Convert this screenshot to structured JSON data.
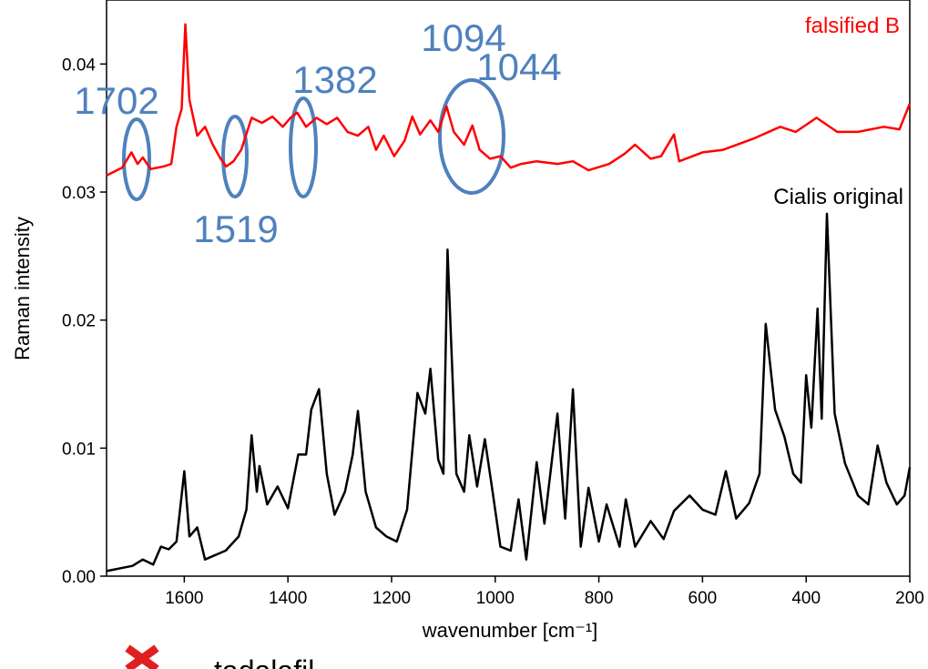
{
  "chart_data": {
    "type": "line",
    "xlabel": "wavenumber [cm⁻¹]",
    "ylabel": "Raman intensity",
    "xlim": [
      1750,
      200
    ],
    "ylim": [
      0,
      0.045
    ],
    "xticks": [
      1600,
      1400,
      1200,
      1000,
      800,
      600,
      400,
      200
    ],
    "yticks": [
      {
        "value": 0,
        "label": "0.00"
      },
      0.01,
      0.02,
      0.03,
      0.04
    ],
    "series": [
      {
        "name": "falsified B",
        "color": "#ff0000",
        "x": [
          1750,
          1720,
          1702,
          1690,
          1680,
          1665,
          1640,
          1625,
          1615,
          1605,
          1598,
          1590,
          1575,
          1560,
          1545,
          1530,
          1519,
          1505,
          1490,
          1470,
          1450,
          1430,
          1410,
          1395,
          1382,
          1365,
          1345,
          1325,
          1305,
          1285,
          1265,
          1245,
          1230,
          1215,
          1195,
          1175,
          1160,
          1145,
          1125,
          1110,
          1094,
          1080,
          1060,
          1044,
          1030,
          1010,
          990,
          970,
          950,
          920,
          880,
          850,
          820,
          780,
          750,
          730,
          700,
          680,
          655,
          645,
          600,
          560,
          500,
          450,
          420,
          380,
          340,
          300,
          250,
          220,
          200
        ],
        "values": [
          0.0313,
          0.0319,
          0.0331,
          0.0322,
          0.0327,
          0.0318,
          0.032,
          0.0322,
          0.0351,
          0.0365,
          0.0431,
          0.0372,
          0.0344,
          0.0351,
          0.0337,
          0.0326,
          0.032,
          0.0324,
          0.0333,
          0.0358,
          0.0354,
          0.0359,
          0.0351,
          0.0358,
          0.0362,
          0.0351,
          0.0358,
          0.0353,
          0.0358,
          0.0347,
          0.0344,
          0.0351,
          0.0333,
          0.0344,
          0.0328,
          0.034,
          0.0359,
          0.0345,
          0.0356,
          0.0347,
          0.0367,
          0.0347,
          0.0337,
          0.0352,
          0.0333,
          0.0326,
          0.0328,
          0.0319,
          0.0322,
          0.0324,
          0.0322,
          0.0324,
          0.0317,
          0.0322,
          0.033,
          0.0337,
          0.0326,
          0.0328,
          0.0345,
          0.0324,
          0.0331,
          0.0333,
          0.0342,
          0.0351,
          0.0347,
          0.0358,
          0.0347,
          0.0347,
          0.0351,
          0.0349,
          0.0369
        ]
      },
      {
        "name": "Cialis original",
        "color": "#000000",
        "x": [
          1750,
          1700,
          1680,
          1660,
          1645,
          1630,
          1615,
          1600,
          1590,
          1575,
          1560,
          1520,
          1495,
          1480,
          1470,
          1460,
          1455,
          1440,
          1420,
          1400,
          1380,
          1365,
          1355,
          1340,
          1325,
          1310,
          1290,
          1275,
          1265,
          1250,
          1230,
          1210,
          1190,
          1170,
          1150,
          1135,
          1125,
          1110,
          1100,
          1092,
          1075,
          1060,
          1050,
          1035,
          1020,
          1005,
          990,
          970,
          955,
          940,
          920,
          905,
          880,
          865,
          850,
          835,
          820,
          800,
          785,
          760,
          748,
          730,
          700,
          675,
          655,
          625,
          600,
          575,
          555,
          535,
          510,
          490,
          478,
          460,
          442,
          425,
          410,
          400,
          390,
          378,
          370,
          360,
          345,
          325,
          300,
          280,
          262,
          245,
          225,
          210,
          200
        ],
        "values": [
          0.0004,
          0.0008,
          0.0013,
          0.0009,
          0.0023,
          0.0021,
          0.0027,
          0.0082,
          0.0031,
          0.0038,
          0.0013,
          0.002,
          0.0031,
          0.0052,
          0.011,
          0.0066,
          0.0086,
          0.0056,
          0.007,
          0.0053,
          0.0095,
          0.0095,
          0.013,
          0.0146,
          0.008,
          0.0048,
          0.0066,
          0.0095,
          0.0129,
          0.0066,
          0.0038,
          0.0031,
          0.0027,
          0.0052,
          0.0143,
          0.0127,
          0.0162,
          0.0091,
          0.008,
          0.0255,
          0.008,
          0.0066,
          0.011,
          0.007,
          0.0107,
          0.0066,
          0.0023,
          0.002,
          0.006,
          0.0013,
          0.0089,
          0.0041,
          0.0127,
          0.0045,
          0.0146,
          0.0023,
          0.0069,
          0.0027,
          0.0056,
          0.0023,
          0.006,
          0.0023,
          0.0043,
          0.0029,
          0.0051,
          0.0063,
          0.0052,
          0.0048,
          0.0082,
          0.0045,
          0.0057,
          0.008,
          0.0197,
          0.013,
          0.0109,
          0.008,
          0.0073,
          0.0157,
          0.0116,
          0.0209,
          0.0123,
          0.0283,
          0.0127,
          0.0088,
          0.0063,
          0.0056,
          0.0102,
          0.0073,
          0.0056,
          0.0063,
          0.0085
        ]
      }
    ],
    "annotations": [
      "1702",
      "1519",
      "1382",
      "1094",
      "1044"
    ],
    "footnote": "tadalafil"
  }
}
